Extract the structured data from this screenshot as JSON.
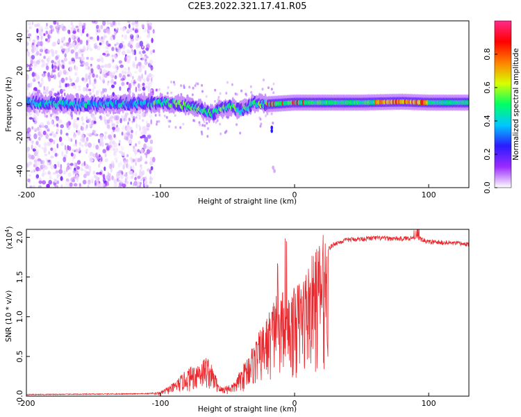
{
  "title": "C2E3.2022.321.17.41.R05",
  "chart_data": [
    {
      "type": "heatmap",
      "xlabel": "Height of straight line (km)",
      "ylabel": "Frequency (Hz)",
      "xlim": [
        -200,
        130
      ],
      "ylim": [
        -50,
        50
      ],
      "x_ticks": [
        "-200",
        "-100",
        "0",
        "100"
      ],
      "y_ticks": [
        "-40",
        "-20",
        "0",
        "20",
        "40"
      ],
      "colorbar": {
        "label": "Normalized spectral amplitude",
        "range": [
          0,
          1
        ],
        "ticks": [
          "0.0",
          "0.2",
          "0.4",
          "0.6",
          "0.8"
        ],
        "colors": [
          "#ffffff",
          "#9a2bff",
          "#2a1bff",
          "#00c8ff",
          "#00ff66",
          "#d8ff00",
          "#ff8000",
          "#ff0000",
          "#ff2a8a"
        ]
      },
      "ridge_points": [
        [
          -200,
          1
        ],
        [
          -180,
          0.5
        ],
        [
          -160,
          0
        ],
        [
          -140,
          0
        ],
        [
          -120,
          0.5
        ],
        [
          -100,
          1
        ],
        [
          -90,
          0.5
        ],
        [
          -80,
          -1
        ],
        [
          -70,
          -3
        ],
        [
          -62,
          -6
        ],
        [
          -55,
          -3
        ],
        [
          -48,
          -1
        ],
        [
          -40,
          -4
        ],
        [
          -30,
          1
        ],
        [
          -20,
          0
        ],
        [
          -10,
          0.5
        ],
        [
          0,
          1
        ],
        [
          20,
          1
        ],
        [
          50,
          1
        ],
        [
          80,
          1.5
        ],
        [
          100,
          1
        ],
        [
          130,
          1
        ]
      ]
    },
    {
      "type": "line",
      "xlabel": "Height of straight line (km)",
      "ylabel": "SNR (10 * v/v)",
      "y_multiplier": "(x10",
      "y_exponent": "4",
      "y_multiplier_close": ")",
      "xlim": [
        -200,
        130
      ],
      "ylim": [
        0,
        2.1
      ],
      "x_ticks": [
        "-200",
        "-100",
        "0",
        "100"
      ],
      "y_ticks": [
        "0.0",
        "0.5",
        "1.0",
        "1.5",
        "2.0"
      ],
      "line_color": "#e8282d",
      "envelope": [
        [
          -200,
          0.02
        ],
        [
          -110,
          0.03
        ],
        [
          -100,
          0.05
        ],
        [
          -90,
          0.15
        ],
        [
          -80,
          0.3
        ],
        [
          -70,
          0.4
        ],
        [
          -65,
          0.45
        ],
        [
          -55,
          0.1
        ],
        [
          -45,
          0.15
        ],
        [
          -40,
          0.3
        ],
        [
          -30,
          0.6
        ],
        [
          -20,
          0.9
        ],
        [
          -15,
          1.1
        ],
        [
          -10,
          1.2
        ],
        [
          -5,
          1.1
        ],
        [
          0,
          1.2
        ],
        [
          5,
          1.3
        ],
        [
          10,
          1.45
        ],
        [
          15,
          1.6
        ],
        [
          20,
          1.75
        ],
        [
          25,
          1.85
        ],
        [
          30,
          1.92
        ],
        [
          40,
          1.97
        ],
        [
          60,
          1.99
        ],
        [
          80,
          1.98
        ],
        [
          90,
          2.0
        ],
        [
          100,
          1.94
        ],
        [
          115,
          1.93
        ],
        [
          130,
          1.91
        ]
      ]
    }
  ]
}
